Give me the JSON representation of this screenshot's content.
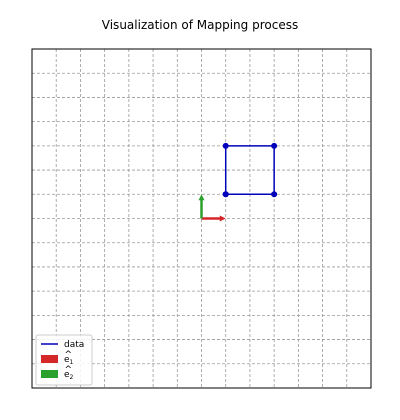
{
  "chart_data": {
    "type": "line",
    "title": "Visualization of Mapping process",
    "xlim": [
      -7,
      7
    ],
    "ylim": [
      -7,
      7
    ],
    "grid": true,
    "axes_visible": false,
    "legend_placement": "lower-left",
    "series": [
      {
        "name": "data",
        "color": "#0000bb",
        "marker": "circle",
        "x": [
          1,
          3,
          3,
          1,
          1
        ],
        "y": [
          1,
          1,
          3,
          3,
          1
        ]
      }
    ],
    "basis_vectors": [
      {
        "name": "ê1",
        "symbol": "e",
        "subscript": "1",
        "color": "#d62728",
        "origin": [
          0,
          0
        ],
        "vector": [
          1,
          0
        ]
      },
      {
        "name": "ê2",
        "symbol": "e",
        "subscript": "2",
        "color": "#2ca02c",
        "origin": [
          0,
          0
        ],
        "vector": [
          0,
          1
        ]
      }
    ]
  }
}
